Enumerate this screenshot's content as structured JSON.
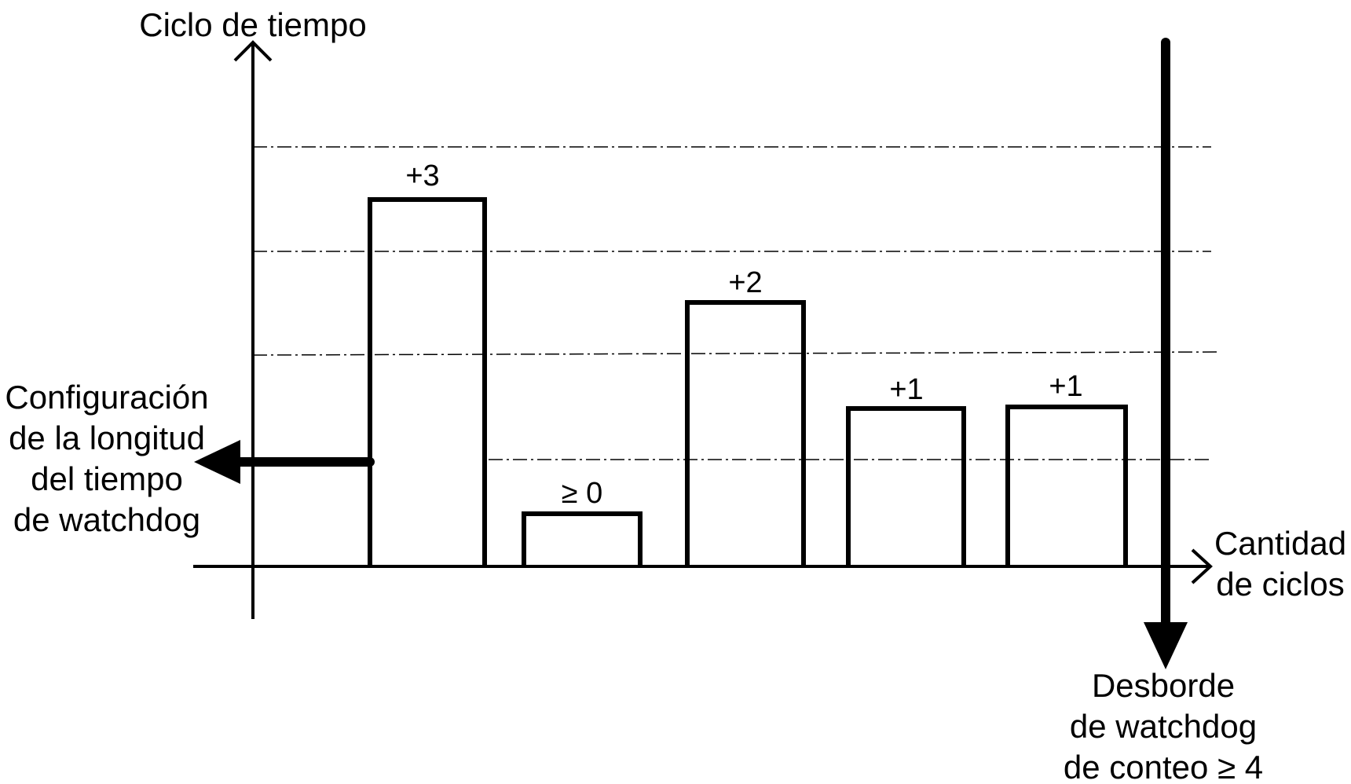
{
  "axes": {
    "y_label": "Ciclo de tiempo",
    "x_label_lines": [
      "Cantidad",
      "de ciclos"
    ]
  },
  "bars": [
    {
      "label": "+3"
    },
    {
      "label": "≥ 0"
    },
    {
      "label": "+2"
    },
    {
      "label": "+1"
    },
    {
      "label": "+1"
    }
  ],
  "left_annotation": {
    "lines": [
      "Configuración",
      "de la longitud",
      "del tiempo",
      "de watchdog"
    ]
  },
  "right_annotation": {
    "lines": [
      "Desborde",
      "de watchdog",
      "de conteo ≥ 4"
    ]
  }
}
